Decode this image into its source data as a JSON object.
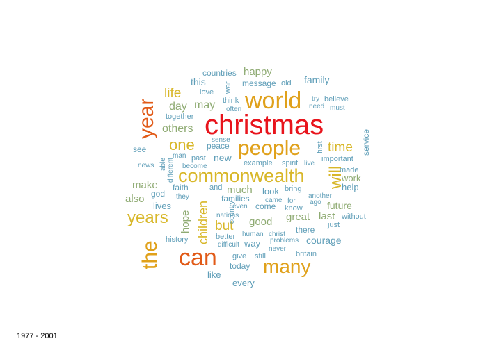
{
  "caption": "1977 - 2001",
  "colors": {
    "red": "#e8141c",
    "orange": "#e15a17",
    "amber": "#e0a11b",
    "gold": "#d8b729",
    "sage": "#8fab73",
    "teal": "#5f9eb8"
  },
  "words": [
    {
      "text": "christmas",
      "color": "red"
    },
    {
      "text": "year",
      "color": "orange"
    },
    {
      "text": "can",
      "color": "orange"
    },
    {
      "text": "the",
      "color": "amber"
    },
    {
      "text": "world",
      "color": "amber"
    },
    {
      "text": "people",
      "color": "amber"
    },
    {
      "text": "many",
      "color": "amber"
    },
    {
      "text": "commonwealth",
      "color": "gold"
    },
    {
      "text": "years",
      "color": "gold"
    },
    {
      "text": "will",
      "color": "gold"
    },
    {
      "text": "one",
      "color": "gold"
    },
    {
      "text": "time",
      "color": "gold"
    },
    {
      "text": "life",
      "color": "gold"
    },
    {
      "text": "but",
      "color": "gold"
    },
    {
      "text": "children",
      "color": "gold"
    },
    {
      "text": "happy",
      "color": "sage"
    },
    {
      "text": "day",
      "color": "sage"
    },
    {
      "text": "may",
      "color": "sage"
    },
    {
      "text": "others",
      "color": "sage"
    },
    {
      "text": "make",
      "color": "sage"
    },
    {
      "text": "also",
      "color": "sage"
    },
    {
      "text": "hope",
      "color": "sage"
    },
    {
      "text": "much",
      "color": "sage"
    },
    {
      "text": "good",
      "color": "sage"
    },
    {
      "text": "great",
      "color": "sage"
    },
    {
      "text": "last",
      "color": "sage"
    },
    {
      "text": "future",
      "color": "sage"
    },
    {
      "text": "work",
      "color": "sage"
    },
    {
      "text": "this",
      "color": "teal"
    },
    {
      "text": "family",
      "color": "teal"
    },
    {
      "text": "countries",
      "color": "teal"
    },
    {
      "text": "love",
      "color": "teal"
    },
    {
      "text": "war",
      "color": "teal"
    },
    {
      "text": "message",
      "color": "teal"
    },
    {
      "text": "old",
      "color": "teal"
    },
    {
      "text": "think",
      "color": "teal"
    },
    {
      "text": "often",
      "color": "teal"
    },
    {
      "text": "try",
      "color": "teal"
    },
    {
      "text": "believe",
      "color": "teal"
    },
    {
      "text": "need",
      "color": "teal"
    },
    {
      "text": "must",
      "color": "teal"
    },
    {
      "text": "together",
      "color": "teal"
    },
    {
      "text": "see",
      "color": "teal"
    },
    {
      "text": "sense",
      "color": "teal"
    },
    {
      "text": "peace",
      "color": "teal"
    },
    {
      "text": "new",
      "color": "teal"
    },
    {
      "text": "first",
      "color": "teal"
    },
    {
      "text": "important",
      "color": "teal"
    },
    {
      "text": "service",
      "color": "teal"
    },
    {
      "text": "able",
      "color": "teal"
    },
    {
      "text": "different",
      "color": "teal"
    },
    {
      "text": "man",
      "color": "teal"
    },
    {
      "text": "past",
      "color": "teal"
    },
    {
      "text": "news",
      "color": "teal"
    },
    {
      "text": "become",
      "color": "teal"
    },
    {
      "text": "example",
      "color": "teal"
    },
    {
      "text": "spirit",
      "color": "teal"
    },
    {
      "text": "live",
      "color": "teal"
    },
    {
      "text": "made",
      "color": "teal"
    },
    {
      "text": "help",
      "color": "teal"
    },
    {
      "text": "god",
      "color": "teal"
    },
    {
      "text": "faith",
      "color": "teal"
    },
    {
      "text": "they",
      "color": "teal"
    },
    {
      "text": "and",
      "color": "teal"
    },
    {
      "text": "families",
      "color": "teal"
    },
    {
      "text": "look",
      "color": "teal"
    },
    {
      "text": "bring",
      "color": "teal"
    },
    {
      "text": "another",
      "color": "teal"
    },
    {
      "text": "ago",
      "color": "teal"
    },
    {
      "text": "came",
      "color": "teal"
    },
    {
      "text": "for",
      "color": "teal"
    },
    {
      "text": "country",
      "color": "teal"
    },
    {
      "text": "even",
      "color": "teal"
    },
    {
      "text": "come",
      "color": "teal"
    },
    {
      "text": "know",
      "color": "teal"
    },
    {
      "text": "lives",
      "color": "teal"
    },
    {
      "text": "nations",
      "color": "teal"
    },
    {
      "text": "without",
      "color": "teal"
    },
    {
      "text": "just",
      "color": "teal"
    },
    {
      "text": "history",
      "color": "teal"
    },
    {
      "text": "better",
      "color": "teal"
    },
    {
      "text": "human",
      "color": "teal"
    },
    {
      "text": "christ",
      "color": "teal"
    },
    {
      "text": "there",
      "color": "teal"
    },
    {
      "text": "courage",
      "color": "teal"
    },
    {
      "text": "difficult",
      "color": "teal"
    },
    {
      "text": "way",
      "color": "teal"
    },
    {
      "text": "problems",
      "color": "teal"
    },
    {
      "text": "never",
      "color": "teal"
    },
    {
      "text": "give",
      "color": "teal"
    },
    {
      "text": "still",
      "color": "teal"
    },
    {
      "text": "britain",
      "color": "teal"
    },
    {
      "text": "today",
      "color": "teal"
    },
    {
      "text": "like",
      "color": "teal"
    },
    {
      "text": "every",
      "color": "teal"
    }
  ]
}
